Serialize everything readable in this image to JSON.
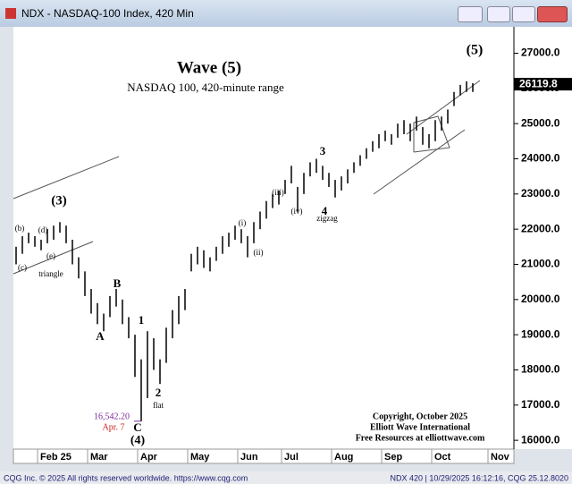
{
  "window_title": "NDX - NASDAQ-100 Index, 420 Min",
  "status_left": "CQG Inc. © 2025 All rights reserved worldwide. https://www.cqg.com",
  "status_right": "NDX 420 | 10/29/2025 16:12:16, CQG 25.12.8020",
  "chart_data": {
    "type": "ohlc",
    "title": "Wave (5)",
    "subtitle": "NASDAQ 100, 420-minute range",
    "copyright": [
      "Copyright, October 2025",
      "Elliott Wave International",
      "Free Resources at elliottwave.com"
    ],
    "categories": [
      null,
      null,
      null,
      null,
      "Feb 25",
      null,
      null,
      null,
      null,
      null,
      null,
      null,
      "Mar",
      null,
      null,
      null,
      null,
      null,
      null,
      null,
      "Apr",
      null,
      null,
      null,
      null,
      null,
      null,
      null,
      "May",
      null,
      null,
      null,
      null,
      null,
      null,
      null,
      "Jun",
      null,
      null,
      null,
      null,
      null,
      null,
      "Jul",
      null,
      null,
      null,
      null,
      null,
      null,
      null,
      "Aug",
      null,
      null,
      null,
      null,
      null,
      null,
      null,
      "Sep",
      null,
      null,
      null,
      null,
      null,
      null,
      null,
      "Oct",
      null,
      null,
      null,
      null,
      null,
      null,
      null,
      null,
      "Nov",
      null,
      null,
      null
    ],
    "high": [
      21500,
      21800,
      21900,
      21800,
      21700,
      22000,
      22100,
      22200,
      22100,
      21700,
      21200,
      20800,
      20300,
      19900,
      19600,
      20100,
      20300,
      20000,
      19500,
      19000,
      18300,
      19100,
      18900,
      18300,
      19200,
      19700,
      20100,
      20300,
      21300,
      21500,
      21400,
      21200,
      21500,
      21800,
      21900,
      22100,
      22000,
      21800,
      22200,
      22500,
      22800,
      23000,
      23100,
      23400,
      23800,
      23200,
      23600,
      23900,
      24000,
      23800,
      23600,
      23400,
      23500,
      23700,
      23900,
      24100,
      24300,
      24500,
      24700,
      24800,
      24700,
      25000,
      25100,
      25000,
      25200,
      24900,
      24700,
      25100,
      25200,
      25400,
      25900,
      26100,
      26200,
      26150,
      null,
      null,
      null,
      null,
      null,
      null
    ],
    "low": [
      21000,
      21300,
      21600,
      21500,
      21400,
      21600,
      21700,
      21900,
      21600,
      21000,
      20600,
      20100,
      19600,
      19300,
      19100,
      19500,
      19800,
      19300,
      18900,
      17800,
      16542,
      17200,
      18000,
      17600,
      18200,
      18900,
      19300,
      19700,
      20800,
      21000,
      20900,
      20800,
      21100,
      21300,
      21500,
      21700,
      21600,
      21200,
      21600,
      22000,
      22300,
      22600,
      22700,
      23000,
      23300,
      22500,
      23000,
      23500,
      23600,
      23400,
      23200,
      22900,
      23100,
      23300,
      23600,
      23800,
      24000,
      24200,
      24300,
      24500,
      24400,
      24600,
      24700,
      24500,
      24800,
      24400,
      24300,
      24500,
      24800,
      25000,
      25500,
      25800,
      25900,
      25900,
      null,
      null,
      null,
      null,
      null,
      null
    ],
    "color": "#000000",
    "ylim": [
      15800,
      27750
    ],
    "yticks": [
      {
        "value": 16000,
        "label": "16000.0"
      },
      {
        "value": 17000,
        "label": "17000.0"
      },
      {
        "value": 18000,
        "label": "18000.0"
      },
      {
        "value": 19000,
        "label": "19000.0"
      },
      {
        "value": 20000,
        "label": "20000.0"
      },
      {
        "value": 21000,
        "label": "21000.0"
      },
      {
        "value": 22000,
        "label": "22000.0"
      },
      {
        "value": 23000,
        "label": "23000.0"
      },
      {
        "value": 24000,
        "label": "24000.0"
      },
      {
        "value": 25000,
        "label": "25000.0"
      },
      {
        "value": 26000,
        "label": "26000.0"
      },
      {
        "value": 27000,
        "label": "27000.0"
      }
    ],
    "last": 26119.8,
    "low_mark": {
      "value": 16542.2,
      "label": "16,542.20",
      "date": "Apr. 7"
    },
    "annotations": [
      "(5)",
      "(3)",
      "(b)",
      "(d)",
      "(e)",
      "(c)",
      "triangle",
      "A",
      "B",
      "1",
      "2",
      "flat",
      "C",
      "(4)",
      "(i)",
      "(ii)",
      "(iii)",
      "(iv)",
      "3",
      "4",
      "zigzag"
    ]
  }
}
